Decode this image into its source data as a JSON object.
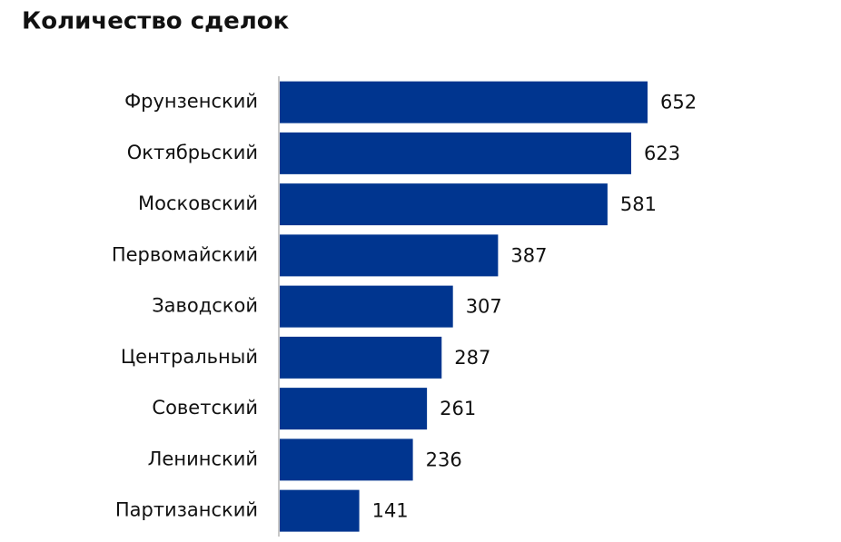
{
  "chart_data": {
    "type": "barh",
    "title": "Количество сделок",
    "categories": [
      "Фрунзенский",
      "Октябрьский",
      "Московский",
      "Первомайский",
      "Заводской",
      "Центральный",
      "Советский",
      "Ленинский",
      "Партизанский"
    ],
    "values": [
      652,
      623,
      581,
      387,
      307,
      287,
      261,
      236,
      141
    ],
    "color": "#00358f"
  }
}
